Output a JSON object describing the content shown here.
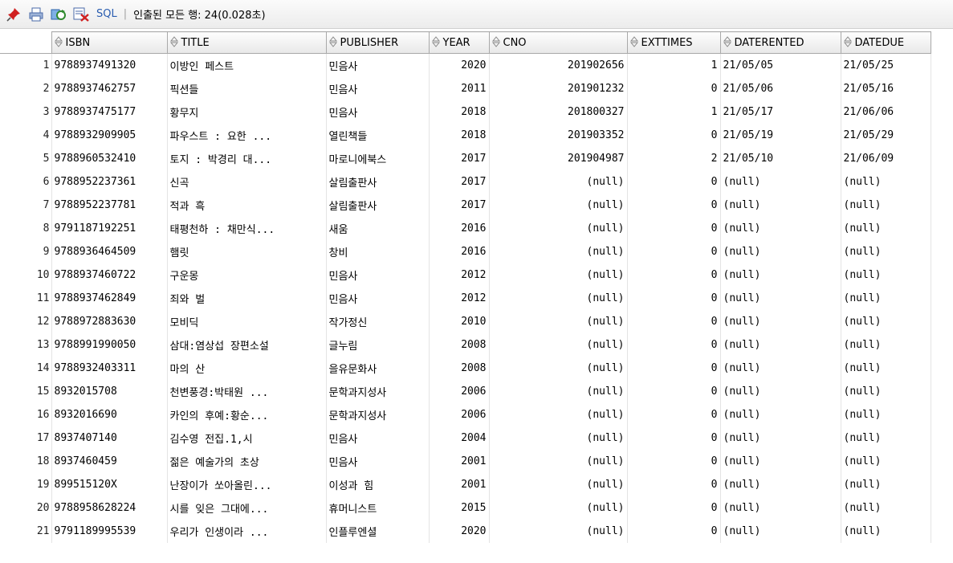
{
  "toolbar": {
    "icons": [
      "pin-icon",
      "print-icon",
      "refresh-icon",
      "export-icon"
    ],
    "sql_label": "SQL",
    "separator": "|",
    "status": "인출된 모든 행: 24(0.028초)"
  },
  "columns": [
    "ISBN",
    "TITLE",
    "PUBLISHER",
    "YEAR",
    "CNO",
    "EXTTIMES",
    "DATERENTED",
    "DATEDUE"
  ],
  "rows": [
    [
      "1",
      "9788937491320",
      "이방인 페스트",
      "민음사",
      "2020",
      "201902656",
      "1",
      "21/05/05",
      "21/05/25"
    ],
    [
      "2",
      "9788937462757",
      "픽션들",
      "민음사",
      "2011",
      "201901232",
      "0",
      "21/05/06",
      "21/05/16"
    ],
    [
      "3",
      "9788937475177",
      "황무지",
      "민음사",
      "2018",
      "201800327",
      "1",
      "21/05/17",
      "21/06/06"
    ],
    [
      "4",
      "9788932909905",
      "파우스트 : 요한 ...",
      "열린책들",
      "2018",
      "201903352",
      "0",
      "21/05/19",
      "21/05/29"
    ],
    [
      "5",
      "9788960532410",
      "토지 : 박경리 대...",
      "마로니에북스",
      "2017",
      "201904987",
      "2",
      "21/05/10",
      "21/06/09"
    ],
    [
      "6",
      "9788952237361",
      "신곡",
      "살림출판사",
      "2017",
      "(null)",
      "0",
      "(null)",
      "(null)"
    ],
    [
      "7",
      "9788952237781",
      "적과 흑",
      "살림출판사",
      "2017",
      "(null)",
      "0",
      "(null)",
      "(null)"
    ],
    [
      "8",
      "9791187192251",
      "태평천하 : 채만식...",
      "새움",
      "2016",
      "(null)",
      "0",
      "(null)",
      "(null)"
    ],
    [
      "9",
      "9788936464509",
      "햄릿",
      "창비",
      "2016",
      "(null)",
      "0",
      "(null)",
      "(null)"
    ],
    [
      "10",
      "9788937460722",
      "구운몽",
      "민음사",
      "2012",
      "(null)",
      "0",
      "(null)",
      "(null)"
    ],
    [
      "11",
      "9788937462849",
      "죄와 벌",
      "민음사",
      "2012",
      "(null)",
      "0",
      "(null)",
      "(null)"
    ],
    [
      "12",
      "9788972883630",
      "모비딕",
      "작가정신",
      "2010",
      "(null)",
      "0",
      "(null)",
      "(null)"
    ],
    [
      "13",
      "9788991990050",
      "삼대:염상섭 장편소설",
      "글누림",
      "2008",
      "(null)",
      "0",
      "(null)",
      "(null)"
    ],
    [
      "14",
      "9788932403311",
      "마의 산",
      "을유문화사",
      "2008",
      "(null)",
      "0",
      "(null)",
      "(null)"
    ],
    [
      "15",
      "8932015708",
      "천변풍경:박태원 ...",
      "문학과지성사",
      "2006",
      "(null)",
      "0",
      "(null)",
      "(null)"
    ],
    [
      "16",
      "8932016690",
      "카인의 후예:황순...",
      "문학과지성사",
      "2006",
      "(null)",
      "0",
      "(null)",
      "(null)"
    ],
    [
      "17",
      "8937407140",
      "김수영 전집.1,시",
      "민음사",
      "2004",
      "(null)",
      "0",
      "(null)",
      "(null)"
    ],
    [
      "18",
      "8937460459",
      "젊은 예술가의 초상",
      "민음사",
      "2001",
      "(null)",
      "0",
      "(null)",
      "(null)"
    ],
    [
      "19",
      "899515120X",
      "난장이가 쏘아올린...",
      "이성과 힘",
      "2001",
      "(null)",
      "0",
      "(null)",
      "(null)"
    ],
    [
      "20",
      "9788958628224",
      "시를 잊은 그대에...",
      "휴머니스트",
      "2015",
      "(null)",
      "0",
      "(null)",
      "(null)"
    ],
    [
      "21",
      "9791189995539",
      "우리가 인생이라 ...",
      "인플루엔셜",
      "2020",
      "(null)",
      "0",
      "(null)",
      "(null)"
    ]
  ],
  "colors": {
    "sql_link": "#2a5db0",
    "pin": "#d02020",
    "grid_border": "#a9a9a9"
  }
}
